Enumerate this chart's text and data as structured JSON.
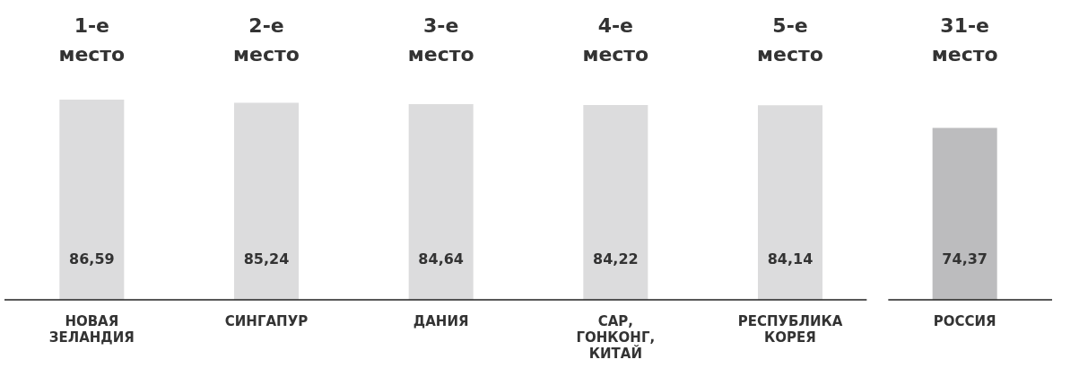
{
  "chart_data": {
    "type": "bar",
    "categories": [
      "НОВАЯ ЗЕЛАНДИЯ",
      "СИНГАПУР",
      "ДАНИЯ",
      "САР, ГОНКОНГ, КИТАЙ",
      "РЕСПУБЛИКА КОРЕЯ",
      "РОССИЯ"
    ],
    "values": [
      86.59,
      85.24,
      84.64,
      84.22,
      84.14,
      74.37
    ],
    "colors": [
      "#dcdcdd",
      "#dcdcdd",
      "#dcdcdd",
      "#dcdcdd",
      "#dcdcdd",
      "#bcbcbe"
    ],
    "value_labels": [
      "86,59",
      "85,24",
      "84,64",
      "84,22",
      "84,14",
      "74,37"
    ],
    "tick_labels": "x",
    "grid": false,
    "legend": false,
    "annotations": [
      "1-е место",
      "2-е место",
      "3-е место",
      "4-е место",
      "5-е место",
      "31-е место"
    ]
  }
}
